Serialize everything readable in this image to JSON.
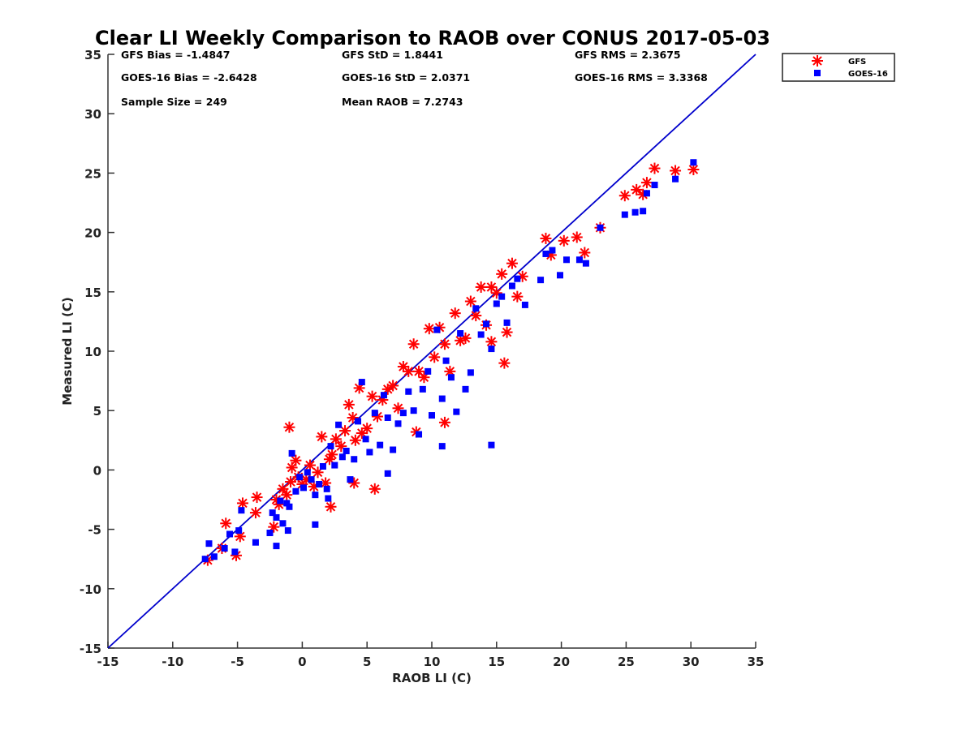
{
  "chart_data": {
    "type": "scatter",
    "title": "Clear LI Weekly Comparison to RAOB over CONUS 2017-05-03",
    "xlabel": "RAOB LI (C)",
    "ylabel": "Measured LI (C)",
    "xlim": [
      -15,
      35
    ],
    "ylim": [
      -15,
      35
    ],
    "xticks": [
      "-15",
      "-10",
      "-5",
      "0",
      "5",
      "10",
      "15",
      "20",
      "25",
      "30",
      "35"
    ],
    "yticks": [
      "-15",
      "-10",
      "-5",
      "0",
      "5",
      "10",
      "15",
      "20",
      "25",
      "30",
      "35"
    ],
    "legend": {
      "position": "top-right-outside",
      "entries": [
        {
          "label": "GFS",
          "marker": "asterisk",
          "color": "#ff0000"
        },
        {
          "label": "GOES-16",
          "marker": "square",
          "color": "#0000ff"
        }
      ]
    },
    "reference_line": {
      "label": "1:1",
      "from": [
        -15,
        -15
      ],
      "to": [
        35,
        35
      ],
      "color": "#0000cc"
    },
    "annotations": [
      "GFS Bias = -1.4847",
      "GFS StD = 1.8441",
      "GFS RMS = 2.3675",
      "GOES-16 Bias = -2.6428",
      "GOES-16 StD = 2.0371",
      "GOES-16 RMS = 3.3368",
      "Sample Size = 249",
      "Mean RAOB = 7.2743"
    ],
    "series": [
      {
        "name": "GFS",
        "color": "#ff0000",
        "marker": "asterisk",
        "x": [
          -7.3,
          -6.2,
          -5.9,
          -5.1,
          -4.8,
          -4.6,
          -3.6,
          -3.5,
          -2.2,
          -2.0,
          -1.8,
          -1.5,
          -1.2,
          -0.9,
          -0.8,
          -0.5,
          -0.3,
          0.0,
          0.3,
          0.6,
          0.9,
          1.2,
          1.5,
          1.8,
          2.1,
          2.3,
          2.6,
          3.0,
          3.3,
          3.6,
          3.9,
          4.1,
          4.4,
          4.6,
          5.0,
          5.4,
          5.8,
          6.2,
          6.6,
          7.0,
          7.4,
          7.8,
          8.2,
          8.6,
          9.0,
          9.4,
          9.8,
          10.2,
          10.6,
          11.0,
          11.4,
          11.8,
          12.2,
          12.6,
          13.0,
          13.4,
          13.8,
          14.2,
          14.6,
          14.6,
          15.0,
          15.4,
          15.8,
          16.2,
          16.6,
          17.0,
          18.8,
          19.2,
          20.2,
          21.2,
          21.8,
          23.0,
          24.9,
          25.8,
          26.3,
          26.6,
          27.2,
          28.8,
          30.2,
          2.2,
          4.0,
          5.6,
          8.8,
          11.0,
          15.6,
          -1.0
        ],
        "y": [
          -7.6,
          -6.6,
          -4.5,
          -7.2,
          -5.6,
          -2.8,
          -3.6,
          -2.3,
          -4.8,
          -2.5,
          -2.9,
          -1.6,
          -2.1,
          -1.0,
          0.2,
          0.8,
          -0.6,
          -1.2,
          -0.8,
          0.4,
          -1.4,
          -0.2,
          2.8,
          -1.1,
          0.9,
          1.3,
          2.6,
          2.0,
          3.3,
          5.5,
          4.4,
          2.5,
          6.9,
          3.1,
          3.5,
          6.2,
          4.5,
          5.9,
          6.8,
          7.1,
          5.2,
          8.7,
          8.3,
          10.6,
          8.3,
          7.8,
          11.9,
          9.5,
          12.0,
          10.6,
          8.3,
          13.2,
          10.9,
          11.1,
          14.2,
          13.0,
          15.4,
          12.2,
          15.4,
          10.8,
          14.9,
          16.5,
          11.6,
          17.4,
          14.6,
          16.3,
          19.5,
          18.1,
          19.3,
          19.6,
          18.3,
          20.4,
          23.1,
          23.6,
          23.2,
          24.2,
          25.4,
          25.2,
          25.3,
          -3.1,
          -1.1,
          -1.6,
          3.2,
          4.0,
          9.0,
          3.6
        ]
      },
      {
        "name": "GOES-16",
        "color": "#0000ff",
        "marker": "square",
        "x": [
          -7.5,
          -7.2,
          -6.8,
          -6.0,
          -5.6,
          -5.2,
          -4.9,
          -4.7,
          -3.6,
          -2.5,
          -2.3,
          -2.0,
          -1.7,
          -1.5,
          -1.2,
          -1.0,
          -0.8,
          -0.5,
          -0.2,
          0.1,
          0.4,
          0.7,
          1.0,
          1.3,
          1.6,
          1.9,
          2.2,
          2.5,
          2.8,
          3.1,
          3.4,
          3.7,
          4.0,
          4.3,
          4.6,
          4.9,
          5.2,
          5.6,
          6.0,
          6.3,
          6.6,
          7.0,
          7.4,
          7.8,
          8.2,
          8.6,
          9.0,
          9.3,
          9.7,
          10.0,
          10.4,
          10.8,
          11.1,
          11.5,
          11.9,
          12.2,
          12.6,
          13.0,
          13.4,
          13.8,
          14.2,
          14.6,
          15.0,
          15.4,
          15.8,
          16.2,
          16.6,
          17.2,
          18.4,
          18.8,
          19.3,
          19.9,
          20.4,
          21.4,
          21.9,
          23.0,
          24.9,
          25.7,
          26.3,
          26.6,
          27.2,
          28.8,
          30.2,
          14.6,
          10.8,
          6.6,
          2.0,
          1.0,
          -2.0,
          -1.1
        ],
        "y": [
          -7.5,
          -6.2,
          -7.3,
          -6.6,
          -5.4,
          -6.9,
          -5.1,
          -3.4,
          -6.1,
          -5.3,
          -3.6,
          -4.0,
          -2.6,
          -4.5,
          -2.8,
          -3.1,
          1.4,
          -1.8,
          -0.6,
          -1.5,
          -0.2,
          -0.8,
          -2.1,
          -1.2,
          0.3,
          -1.6,
          2.0,
          0.4,
          3.8,
          1.1,
          1.6,
          -0.8,
          0.9,
          4.1,
          7.4,
          2.6,
          1.5,
          4.8,
          2.1,
          6.3,
          4.4,
          1.7,
          3.9,
          4.8,
          6.6,
          5.0,
          3.0,
          6.8,
          8.3,
          4.6,
          11.8,
          6.0,
          9.2,
          7.8,
          4.9,
          11.5,
          6.8,
          8.2,
          13.6,
          11.4,
          12.3,
          10.2,
          14.0,
          14.6,
          12.4,
          15.5,
          16.1,
          13.9,
          16.0,
          18.2,
          18.5,
          16.4,
          17.7,
          17.7,
          17.4,
          20.4,
          21.5,
          21.7,
          21.8,
          23.3,
          24.0,
          24.5,
          25.9,
          2.1,
          2.0,
          -0.3,
          -2.4,
          -4.6,
          -6.4,
          -5.1
        ]
      }
    ]
  }
}
